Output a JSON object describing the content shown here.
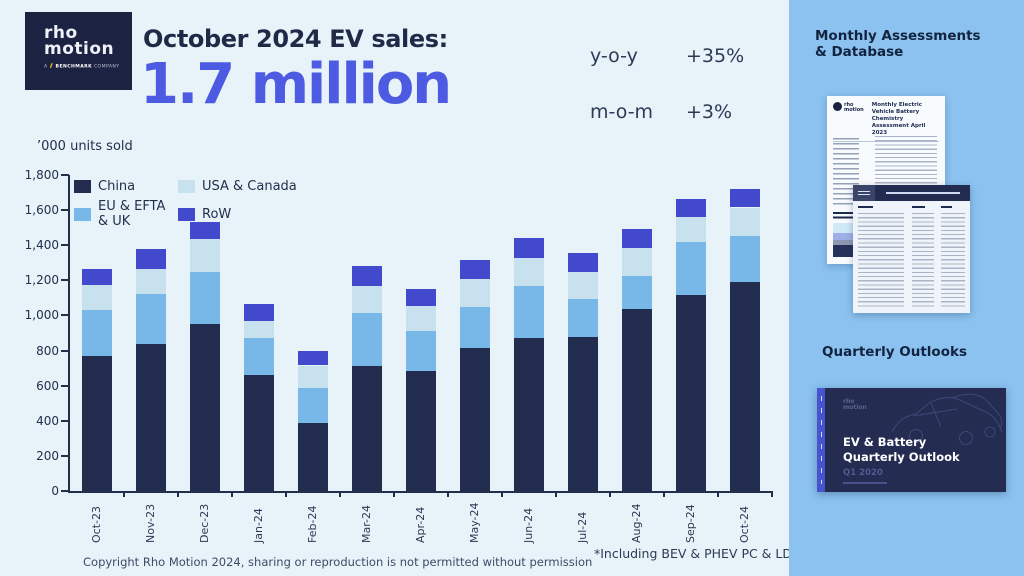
{
  "logo": {
    "line1": "rho",
    "line2": "motion",
    "tagline_prefix": "A",
    "tagline_bold": "BENCHMARK",
    "tagline_suffix": "COMPANY"
  },
  "header": {
    "title": "October 2024 EV sales:",
    "headline": "1.7 million"
  },
  "stats": {
    "rows": [
      {
        "label": "y-o-y",
        "value": "+35%"
      },
      {
        "label": "m-o-m",
        "value": "+3%"
      }
    ]
  },
  "chart_data": {
    "type": "bar",
    "stacked": true,
    "units_label": "’000 units sold",
    "categories": [
      "Oct-23",
      "Nov-23",
      "Dec-23",
      "Jan-24",
      "Feb-24",
      "Mar-24",
      "Apr-24",
      "May-24",
      "Jun-24",
      "Jul-24",
      "Aug-24",
      "Sep-24",
      "Oct-24"
    ],
    "series": [
      {
        "name": "China",
        "color": "#222c4e",
        "values": [
          770,
          840,
          950,
          660,
          385,
          710,
          685,
          815,
          870,
          875,
          1035,
          1115,
          1190
        ]
      },
      {
        "name": "EU & EFTA & UK",
        "color": "#77b8e8",
        "values": [
          260,
          285,
          300,
          210,
          200,
          305,
          225,
          235,
          300,
          220,
          190,
          305,
          260
        ]
      },
      {
        "name": "USA & Canada",
        "color": "#c8e1ef",
        "values": [
          145,
          140,
          185,
          100,
          130,
          150,
          145,
          160,
          160,
          155,
          160,
          140,
          165
        ]
      },
      {
        "name": "RoW",
        "color": "#4349cd",
        "values": [
          90,
          115,
          95,
          95,
          80,
          115,
          95,
          105,
          110,
          105,
          110,
          105,
          105
        ]
      }
    ],
    "legend_order": [
      "China",
      "USA & Canada",
      "EU & EFTA & UK",
      "RoW"
    ],
    "legend_position": "top-left-inside",
    "ylim": [
      0,
      1800
    ],
    "ytick_step": 200,
    "yticks": [
      "0",
      "200",
      "400",
      "600",
      "800",
      "1,000",
      "1,200",
      "1,400",
      "1,600",
      "1,800"
    ],
    "grid": false,
    "xlabel": "",
    "ylabel": ""
  },
  "sidebar": {
    "heading_monthly": "Monthly Assessments & Database",
    "heading_quarterly": "Quarterly Outlooks",
    "doc1": {
      "logo_line1": "rho",
      "logo_line2": "motion",
      "title": "Monthly Electric Vehicle Battery Chemistry Assessment April 2023"
    },
    "quarterly_card": {
      "logo_line1": "rho",
      "logo_line2": "motion",
      "title_line1": "EV & Battery",
      "title_line2": "Quarterly Outlook",
      "subtitle": "Q1 2020"
    }
  },
  "footer": {
    "footnote": "*Including BEV & PHEV PC & LDV sales",
    "copyright": "Copyright Rho Motion 2024, sharing or reproduction is not permitted without permission"
  }
}
